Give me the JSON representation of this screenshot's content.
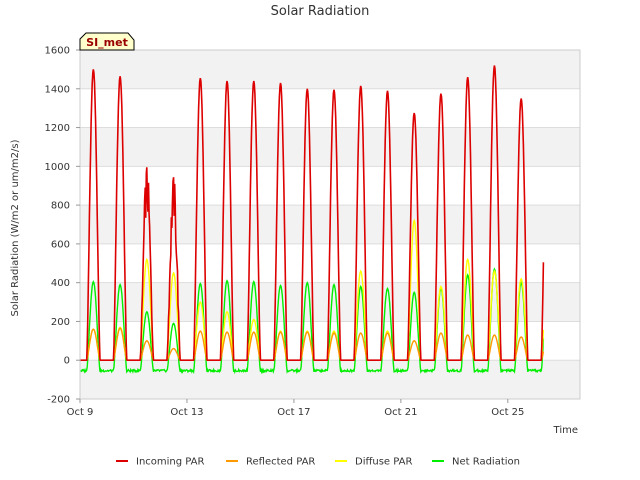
{
  "chart_data": {
    "type": "line",
    "title": "Solar Radiation",
    "xlabel": "Time",
    "ylabel": "Solar Radiation (W/m2 or um/m2/s)",
    "station_badge": "SI_met",
    "x_range_days": [
      9,
      27.7
    ],
    "ylim": [
      -200,
      1600
    ],
    "y_ticks": [
      -200,
      0,
      200,
      400,
      600,
      800,
      1000,
      1200,
      1400,
      1600
    ],
    "x_ticks": [
      {
        "day": 9,
        "label": "Oct 9"
      },
      {
        "day": 13,
        "label": "Oct 13"
      },
      {
        "day": 17,
        "label": "Oct 17"
      },
      {
        "day": 21,
        "label": "Oct 21"
      },
      {
        "day": 25,
        "label": "Oct 25"
      }
    ],
    "grid": true,
    "legend_position": "bottom",
    "day_start": 9,
    "daily": [
      {
        "incoming": 1500,
        "reflected": 160,
        "diffuse": 160,
        "net": 405,
        "spike": 0
      },
      {
        "incoming": 1465,
        "reflected": 165,
        "diffuse": 170,
        "net": 390,
        "spike": 0
      },
      {
        "incoming": 1020,
        "reflected": 100,
        "diffuse": 520,
        "net": 250,
        "spike": 0
      },
      {
        "incoming": 960,
        "reflected": 60,
        "diffuse": 450,
        "net": 190,
        "spike": 0
      },
      {
        "incoming": 1455,
        "reflected": 150,
        "diffuse": 300,
        "net": 395,
        "spike": 0
      },
      {
        "incoming": 1440,
        "reflected": 145,
        "diffuse": 250,
        "net": 410,
        "spike": 0
      },
      {
        "incoming": 1440,
        "reflected": 145,
        "diffuse": 210,
        "net": 405,
        "spike": 0
      },
      {
        "incoming": 1430,
        "reflected": 145,
        "diffuse": 150,
        "net": 385,
        "spike": 0
      },
      {
        "incoming": 1400,
        "reflected": 145,
        "diffuse": 150,
        "net": 400,
        "spike": 0
      },
      {
        "incoming": 1395,
        "reflected": 140,
        "diffuse": 150,
        "net": 390,
        "spike": 0
      },
      {
        "incoming": 1415,
        "reflected": 140,
        "diffuse": 460,
        "net": 380,
        "spike": 0
      },
      {
        "incoming": 1390,
        "reflected": 140,
        "diffuse": 150,
        "net": 370,
        "spike": 0
      },
      {
        "incoming": 1275,
        "reflected": 100,
        "diffuse": 720,
        "net": 350,
        "spike": 0
      },
      {
        "incoming": 1375,
        "reflected": 140,
        "diffuse": 380,
        "net": 370,
        "spike": 0
      },
      {
        "incoming": 1460,
        "reflected": 130,
        "diffuse": 520,
        "net": 440,
        "spike": 0
      },
      {
        "incoming": 1520,
        "reflected": 130,
        "diffuse": 460,
        "net": 470,
        "spike": 0
      },
      {
        "incoming": 1350,
        "reflected": 120,
        "diffuse": 420,
        "net": 400,
        "spike": 0
      }
    ],
    "night_net": -60,
    "series": [
      {
        "name": "Incoming PAR",
        "color": "#dd0000",
        "key": "incoming"
      },
      {
        "name": "Reflected PAR",
        "color": "#ff9900",
        "key": "reflected"
      },
      {
        "name": "Diffuse PAR",
        "color": "#ffff00",
        "key": "diffuse"
      },
      {
        "name": "Net Radiation",
        "color": "#00ee00",
        "key": "net"
      }
    ]
  }
}
